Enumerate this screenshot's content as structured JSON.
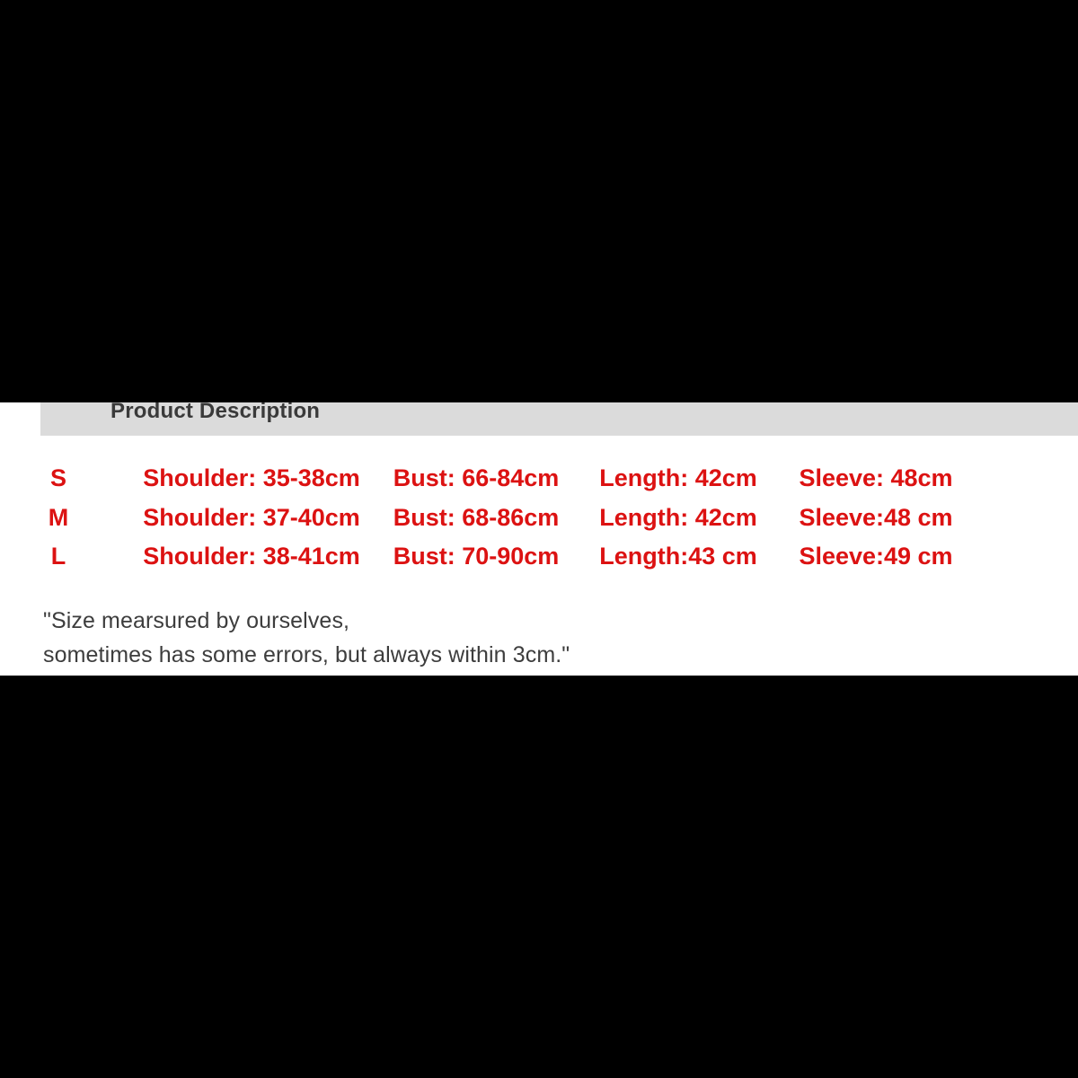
{
  "page": {
    "background_color": "#000000",
    "content_background_color": "#ffffff"
  },
  "header": {
    "title": "Product Description",
    "bar_color": "#dbdbdb",
    "text_color": "#3a3a3a"
  },
  "size_chart": {
    "text_color": "#dc1212",
    "rows": [
      {
        "size": "S",
        "shoulder": "Shoulder: 35-38cm",
        "bust": "Bust: 66-84cm",
        "length": "Length: 42cm",
        "sleeve": "Sleeve: 48cm"
      },
      {
        "size": "M",
        "shoulder": "Shoulder: 37-40cm",
        "bust": "Bust: 68-86cm",
        "length": "Length: 42cm",
        "sleeve": "Sleeve:48 cm"
      },
      {
        "size": "L",
        "shoulder": "Shoulder: 38-41cm",
        "bust": "Bust: 70-90cm",
        "length": "Length:43 cm",
        "sleeve": "Sleeve:49 cm"
      }
    ]
  },
  "note": {
    "text_color": "#3d3d3d",
    "line1": "\"Size mearsured by ourselves,",
    "line2": "sometimes has some errors, but always within 3cm.\""
  }
}
